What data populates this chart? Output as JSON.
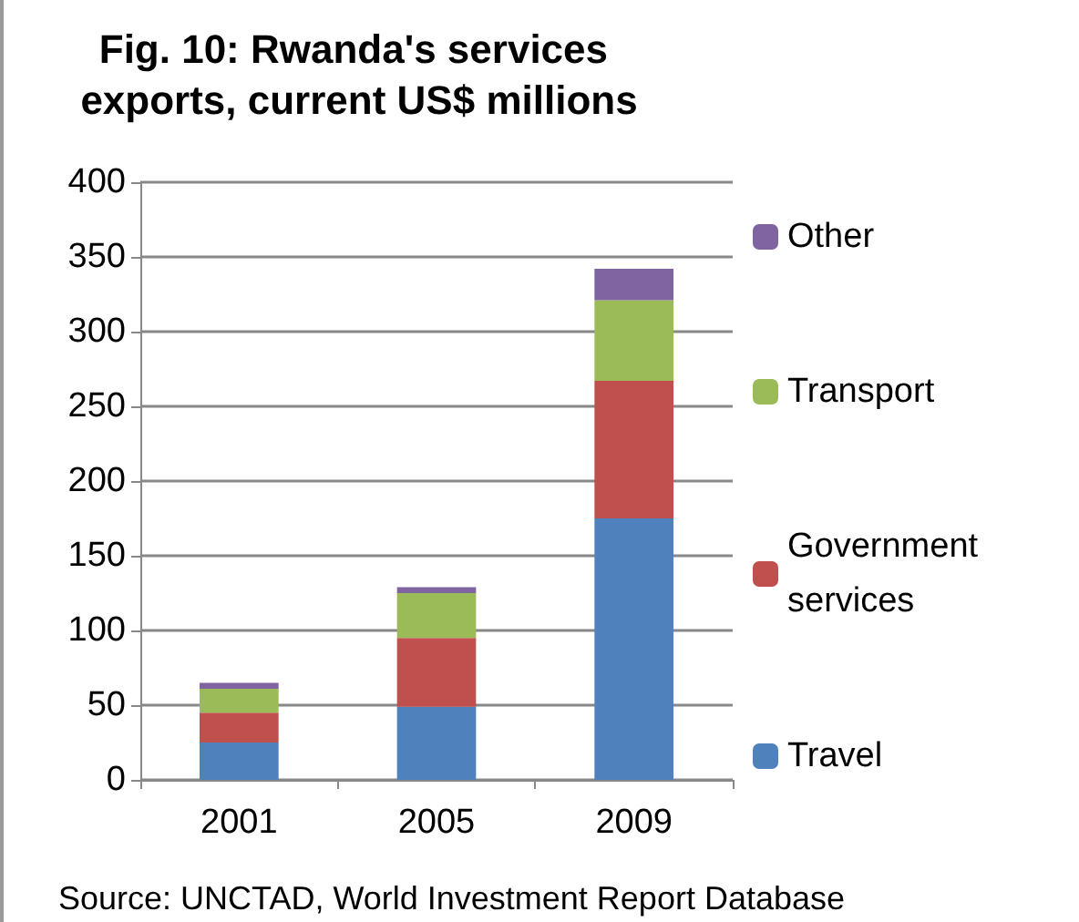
{
  "chart_data": {
    "type": "bar",
    "title": "Fig. 10: Rwanda's services exports, current US$ millions",
    "stacked": true,
    "categories": [
      "2001",
      "2005",
      "2009"
    ],
    "series": [
      {
        "name": "Travel",
        "color": "#4f81bd",
        "values": [
          25,
          49,
          175
        ]
      },
      {
        "name": "Government services",
        "color": "#c0504d",
        "values": [
          20,
          46,
          92
        ]
      },
      {
        "name": "Transport",
        "color": "#9bbb59",
        "values": [
          16,
          30,
          54
        ]
      },
      {
        "name": "Other",
        "color": "#8064a2",
        "values": [
          4,
          4,
          21
        ]
      }
    ],
    "ylim": [
      0,
      400
    ],
    "yticks": [
      0,
      50,
      100,
      150,
      200,
      250,
      300,
      350,
      400
    ],
    "grid": "y",
    "legend": "right",
    "annotations": [
      "Source: UNCTAD, World Investment Report Database"
    ]
  }
}
